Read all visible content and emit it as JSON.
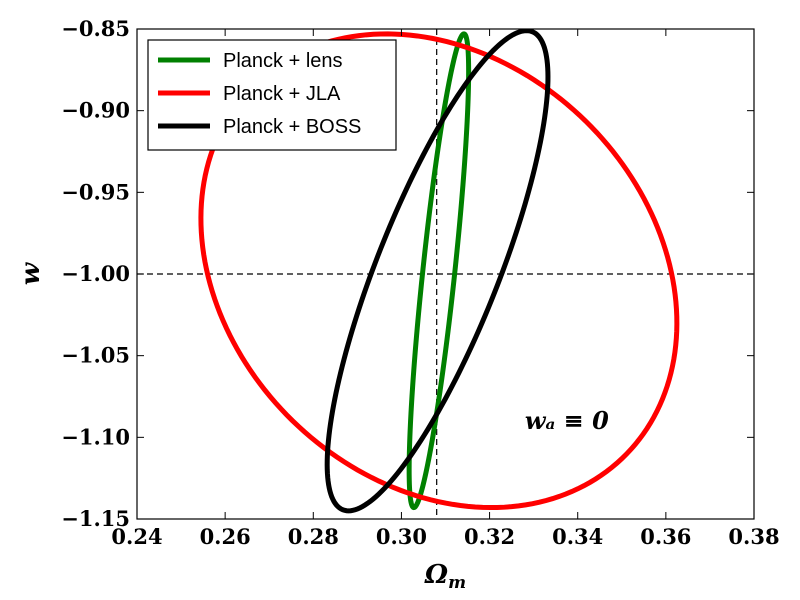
{
  "chart_data": {
    "type": "line",
    "subtype": "confidence-ellipses",
    "xlabel": "Ω_m",
    "ylabel": "w",
    "xlim": [
      0.24,
      0.38
    ],
    "ylim": [
      -1.15,
      -0.85
    ],
    "x_ticks": [
      0.24,
      0.26,
      0.28,
      0.3,
      0.32,
      0.34,
      0.36,
      0.38
    ],
    "x_tick_labels": [
      "0.24",
      "0.26",
      "0.28",
      "0.30",
      "0.32",
      "0.34",
      "0.36",
      "0.38"
    ],
    "y_ticks": [
      -0.85,
      -0.9,
      -0.95,
      -1.0,
      -1.05,
      -1.1,
      -1.15
    ],
    "y_tick_labels": [
      "−0.85",
      "−0.90",
      "−0.95",
      "−1.00",
      "−1.05",
      "−1.10",
      "−1.15"
    ],
    "grid": false,
    "legend_position": "top-left",
    "reference_lines": {
      "vertical_x": 0.308,
      "horizontal_y": -1.0,
      "style": "dashed"
    },
    "annotation": {
      "text": "w_a ≡ 0",
      "x": 0.328,
      "y": -1.095
    },
    "series": [
      {
        "name": "Planck + lens",
        "color": "#008000",
        "center": [
          0.3085,
          -0.998
        ],
        "extreme_points": [
          [
            0.3168,
            -0.853
          ],
          [
            0.3002,
            -1.143
          ],
          [
            0.3018,
            -1.12
          ],
          [
            0.3153,
            -0.876
          ]
        ]
      },
      {
        "name": "Planck + JLA",
        "color": "#ff0000",
        "center": [
          0.3085,
          -0.998
        ],
        "extreme_points": [
          [
            0.3205,
            -0.853
          ],
          [
            0.2965,
            -1.143
          ],
          [
            0.2545,
            -0.966
          ],
          [
            0.3625,
            -1.03
          ]
        ]
      },
      {
        "name": "Planck + BOSS",
        "color": "#000000",
        "center": [
          0.3082,
          -0.998
        ],
        "extreme_points": [
          [
            0.3305,
            -0.853
          ],
          [
            0.286,
            -1.147
          ],
          [
            0.2832,
            -1.117
          ],
          [
            0.3333,
            -0.88
          ]
        ]
      }
    ]
  }
}
